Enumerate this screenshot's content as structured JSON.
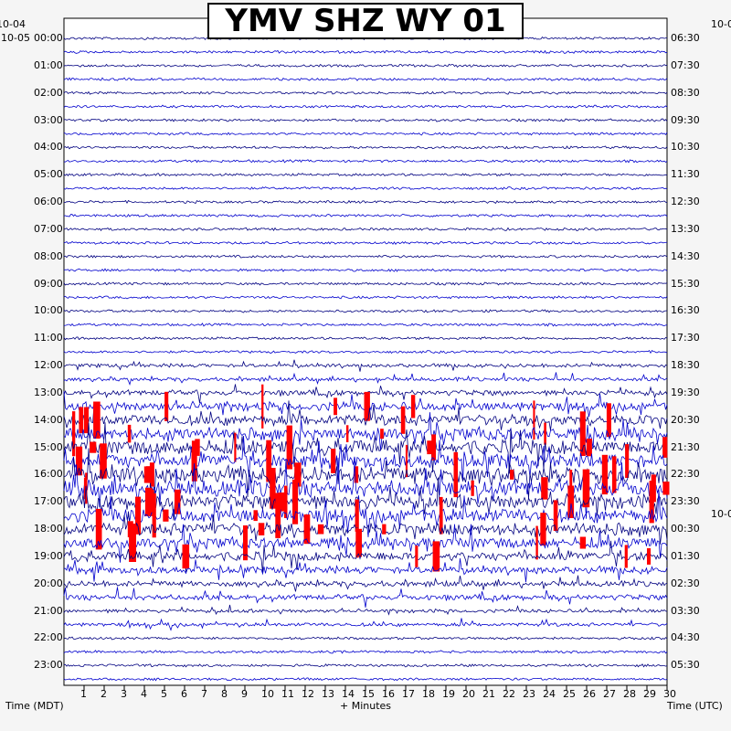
{
  "title": "YMV SHZ WY 01",
  "colors": {
    "trace_a": "#000080",
    "trace_b": "#0000cd",
    "clipped": "#ff0000",
    "background": "#ffffff"
  },
  "labels": {
    "start_date": "10-04",
    "first_row_date": "10-05",
    "utc_date": "10-0",
    "left_axis_title": "Time (MDT)",
    "x_axis_title": "+ Minutes",
    "right_axis_title": "Time (UTC)"
  },
  "chart_data": {
    "type": "helicorder",
    "title": "YMV SHZ WY 01",
    "xlabel": "+ Minutes",
    "ylabel_left": "Time (MDT)",
    "ylabel_right": "Time (UTC)",
    "x_ticks": [
      "1",
      "2",
      "3",
      "4",
      "5",
      "6",
      "7",
      "8",
      "9",
      "10",
      "11",
      "12",
      "13",
      "14",
      "15",
      "16",
      "17",
      "18",
      "19",
      "20",
      "21",
      "22",
      "23",
      "24",
      "25",
      "26",
      "27",
      "28",
      "29",
      "30"
    ],
    "left_hours": [
      "00:00",
      "01:00",
      "02:00",
      "03:00",
      "04:00",
      "05:00",
      "06:00",
      "07:00",
      "08:00",
      "09:00",
      "10:00",
      "11:00",
      "12:00",
      "13:00",
      "14:00",
      "15:00",
      "16:00",
      "17:00",
      "18:00",
      "19:00",
      "20:00",
      "21:00",
      "22:00",
      "23:00"
    ],
    "right_hours": [
      "06:30",
      "07:30",
      "08:30",
      "09:30",
      "10:30",
      "11:30",
      "12:30",
      "13:30",
      "14:30",
      "15:30",
      "16:30",
      "17:30",
      "18:30",
      "19:30",
      "20:30",
      "21:30",
      "22:30",
      "23:30",
      "00:30",
      "01:30",
      "02:30",
      "03:30",
      "04:30",
      "05:30"
    ],
    "lines_per_hour": 2,
    "minutes_per_line": 30,
    "line_amplitude": [
      1,
      1,
      1,
      1,
      1,
      1,
      1,
      1,
      1,
      1,
      1,
      1,
      1,
      1,
      1,
      1,
      1,
      1,
      1,
      1,
      1,
      1,
      1,
      1,
      2,
      2,
      3,
      5,
      6,
      7,
      8,
      8,
      9,
      9,
      8,
      8,
      7,
      6,
      5,
      4,
      3,
      3,
      2,
      2,
      1,
      1,
      1,
      1
    ]
  }
}
